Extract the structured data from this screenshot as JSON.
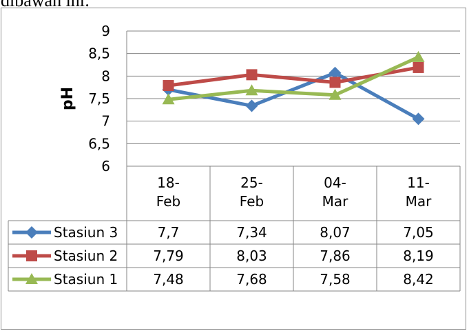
{
  "header": {
    "text": "dibawah ini:"
  },
  "chart_data": {
    "type": "line",
    "ylabel": "pH",
    "xlabel": "",
    "categories": [
      [
        "18-",
        "Feb"
      ],
      [
        "25-",
        "Feb"
      ],
      [
        "04-",
        "Mar"
      ],
      [
        "11-",
        "Mar"
      ]
    ],
    "y_ticks": [
      "9",
      "8,5",
      "8",
      "7,5",
      "7",
      "6,5",
      "6"
    ],
    "ylim": [
      6,
      9
    ],
    "grid": true,
    "legend": "data-table",
    "series": [
      {
        "name": "Stasiun 3",
        "values": [
          7.7,
          7.34,
          8.07,
          7.05
        ],
        "labels": [
          "7,7",
          "7,34",
          "8,07",
          "7,05"
        ],
        "color": "#4a7ebb",
        "marker": "diamond"
      },
      {
        "name": "Stasiun 2",
        "values": [
          7.79,
          8.03,
          7.86,
          8.19
        ],
        "labels": [
          "7,79",
          "8,03",
          "7,86",
          "8,19"
        ],
        "color": "#be4b48",
        "marker": "square"
      },
      {
        "name": "Stasiun 1",
        "values": [
          7.48,
          7.68,
          7.58,
          8.42
        ],
        "labels": [
          "7,48",
          "7,68",
          "7,58",
          "8,42"
        ],
        "color": "#98b954",
        "marker": "triangle"
      }
    ]
  }
}
